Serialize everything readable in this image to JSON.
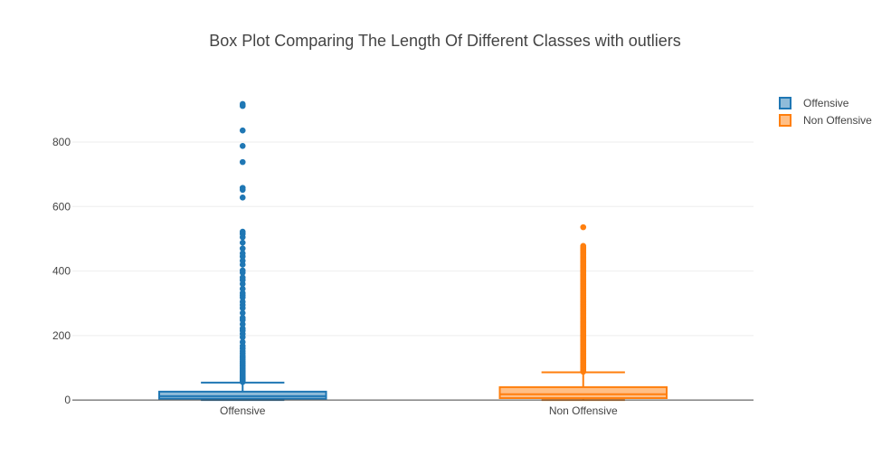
{
  "chart_data": {
    "type": "box",
    "title": "Box Plot Comparing The Length Of Different Classes with outliers",
    "xlabel": "",
    "ylabel": "",
    "ylim": [
      -8,
      960
    ],
    "y_ticks": [
      0,
      200,
      400,
      600,
      800
    ],
    "grid": true,
    "legend_position": "top-right",
    "categories": [
      "Offensive",
      "Non Offensive"
    ],
    "series": [
      {
        "name": "Offensive",
        "color": "#1f77b4",
        "fill": "rgba(31,119,180,0.5)",
        "min": 0,
        "q1": 4,
        "median": 12,
        "q3": 26,
        "upper_fence": 54,
        "outliers": [
          56,
          58,
          60,
          62,
          64,
          66,
          68,
          70,
          73,
          76,
          79,
          82,
          85,
          88,
          92,
          96,
          100,
          105,
          110,
          115,
          120,
          126,
          132,
          138,
          145,
          152,
          160,
          168,
          180,
          195,
          205,
          215,
          222,
          235,
          248,
          255,
          270,
          285,
          295,
          305,
          318,
          325,
          332,
          345,
          360,
          372,
          380,
          395,
          402,
          420,
          432,
          445,
          455,
          470,
          488,
          505,
          515,
          522,
          628,
          652,
          658,
          738,
          788,
          836,
          912,
          918
        ]
      },
      {
        "name": "Non Offensive",
        "color": "#ff7f0e",
        "fill": "rgba(255,127,14,0.5)",
        "min": 0,
        "q1": 6,
        "median": 18,
        "q3": 40,
        "upper_fence": 86,
        "outliers_dense_range": [
          88,
          478
        ],
        "outliers": [
          536
        ]
      }
    ]
  }
}
